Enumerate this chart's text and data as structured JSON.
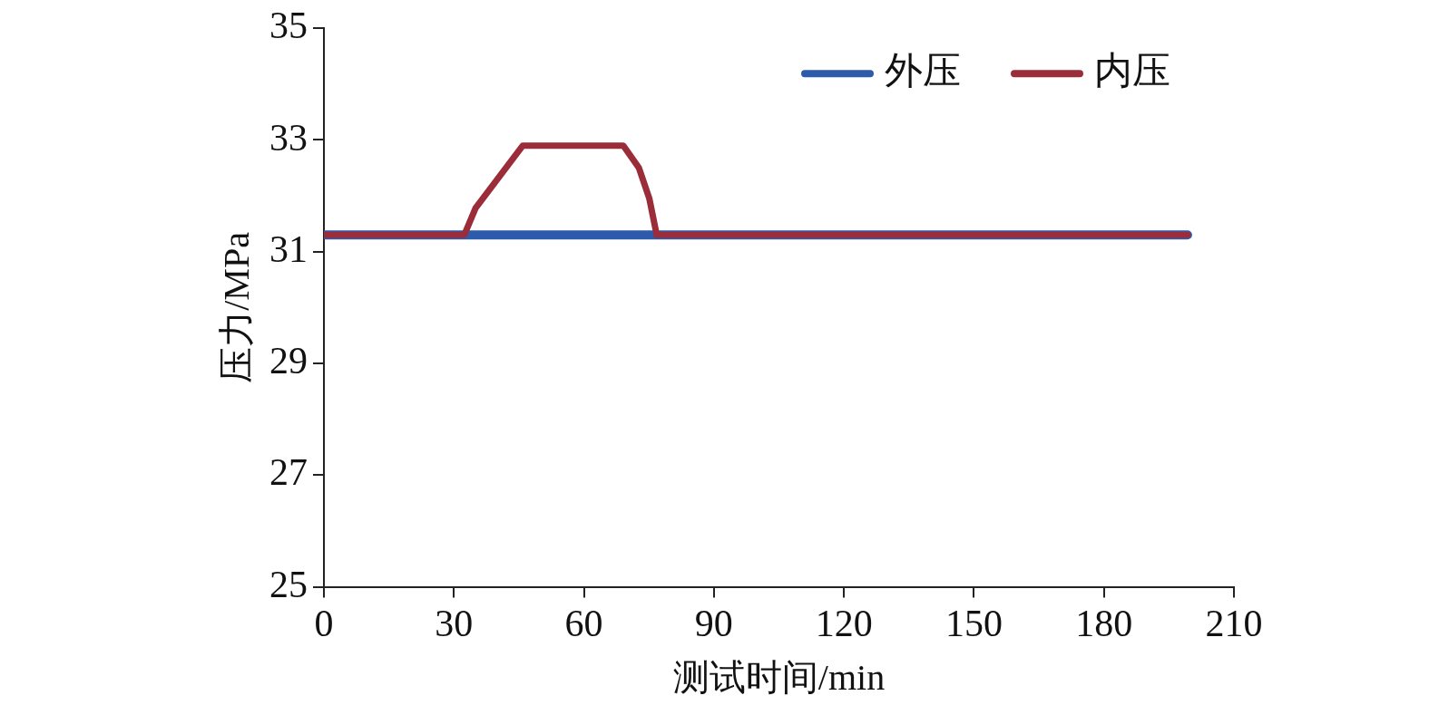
{
  "chart_data": {
    "type": "line",
    "xlabel": "测试时间/min",
    "ylabel": "压力/MPa",
    "xlim": [
      0,
      210
    ],
    "xticks": [
      0,
      30,
      60,
      90,
      120,
      150,
      180,
      210
    ],
    "ylim": [
      25,
      35
    ],
    "yticks": [
      25,
      27,
      29,
      31,
      33,
      35
    ],
    "grid": false,
    "legend": "top right",
    "marker": "none",
    "line_style": "solid",
    "series": [
      {
        "name": "外压",
        "color": "#2e5aac",
        "x": [
          0,
          199.3
        ],
        "values": [
          31.3,
          31.3
        ]
      },
      {
        "name": "内压",
        "color": "#9b2d3a",
        "x": [
          0,
          32.4,
          35,
          45.9,
          69.1,
          72.7,
          75.1,
          76.8,
          199.3
        ],
        "values": [
          31.3,
          31.3,
          31.78,
          32.9,
          32.9,
          32.5,
          31.95,
          31.3,
          31.3
        ]
      }
    ]
  }
}
